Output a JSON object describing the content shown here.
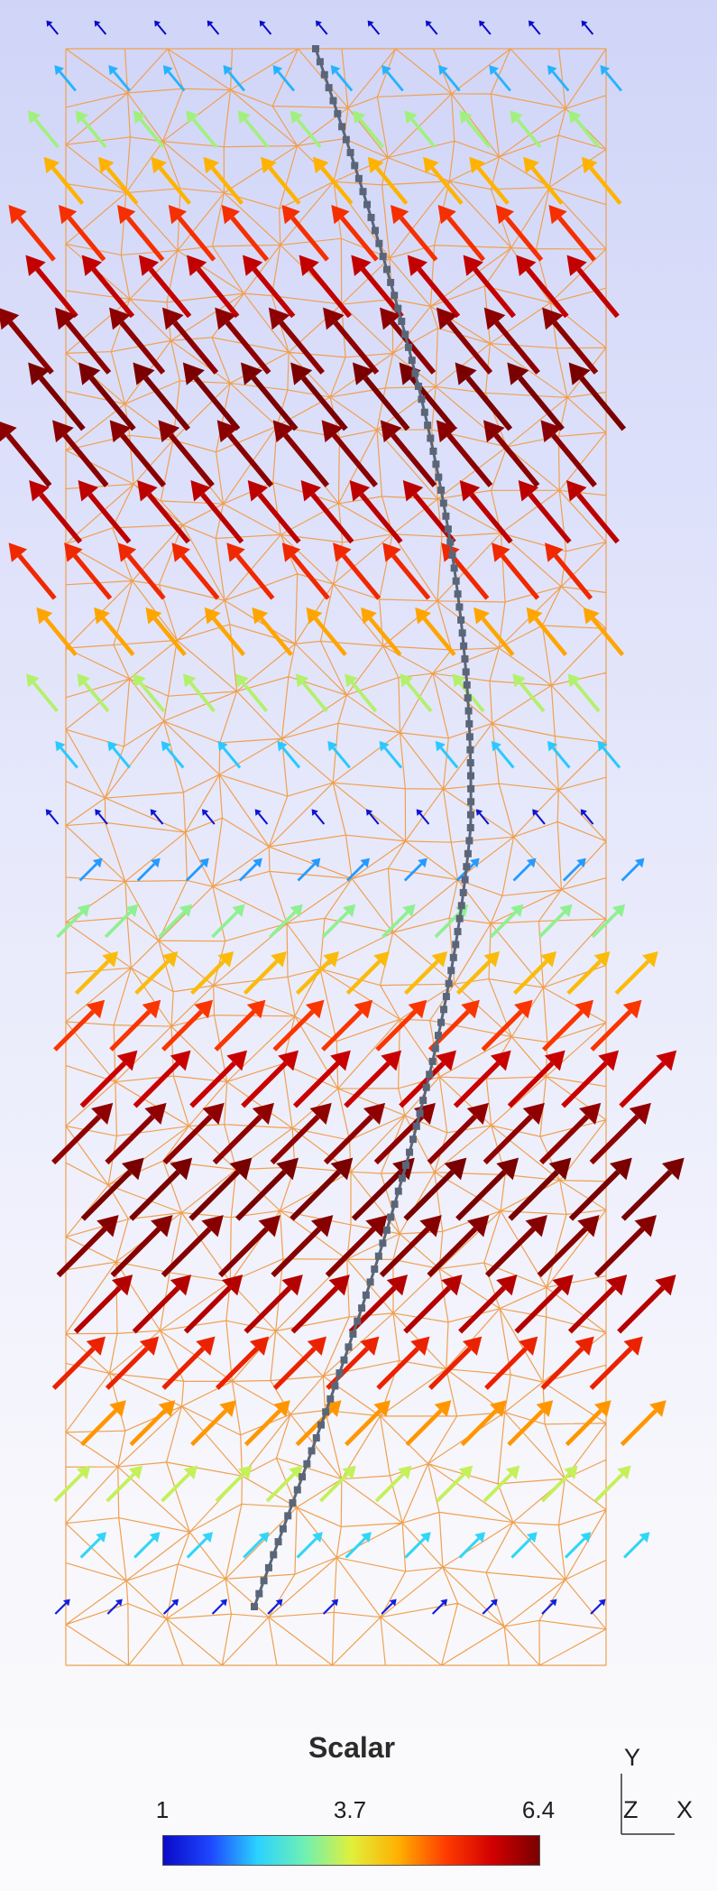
{
  "legend": {
    "title": "Scalar",
    "ticks": [
      "1",
      "3.7",
      "6.4"
    ],
    "range": [
      1,
      6.4
    ],
    "colormap": [
      "#0a0ac8",
      "#1e46ff",
      "#2ad2ff",
      "#6ef0b4",
      "#e0f03c",
      "#ffb000",
      "#ff3c00",
      "#d20000",
      "#7a0000"
    ]
  },
  "axes_triad": {
    "y": "Y",
    "z": "Z",
    "x": "X"
  },
  "colors": {
    "mesh": "#f0a050",
    "path": "#5a6678"
  }
}
